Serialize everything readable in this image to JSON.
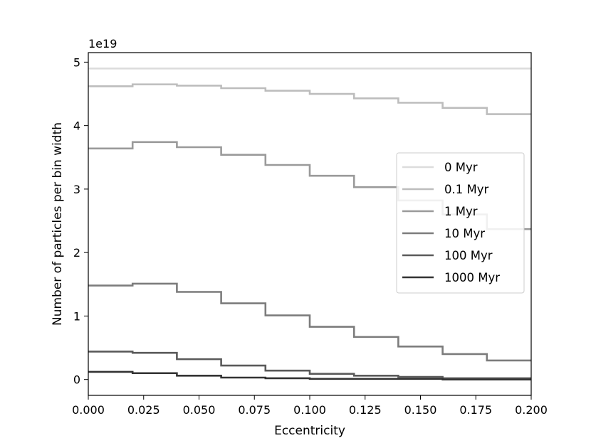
{
  "chart_data": {
    "type": "line",
    "xlabel": "Eccentricity",
    "ylabel": "Number of particles per bin width",
    "y_offset_label": "1e19",
    "xlim": [
      0.0,
      0.2
    ],
    "ylim": [
      -0.25,
      5.15
    ],
    "grid": false,
    "legend_position": "center-right",
    "x_ticks": [
      0.0,
      0.025,
      0.05,
      0.075,
      0.1,
      0.125,
      0.15,
      0.175,
      0.2
    ],
    "x_tick_labels": [
      "0.000",
      "0.025",
      "0.050",
      "0.075",
      "0.100",
      "0.125",
      "0.150",
      "0.175",
      "0.200"
    ],
    "y_ticks": [
      0,
      1,
      2,
      3,
      4,
      5
    ],
    "y_tick_labels": [
      "0",
      "1",
      "2",
      "3",
      "4",
      "5"
    ],
    "bin_edges": [
      0.0,
      0.02,
      0.04,
      0.06,
      0.08,
      0.1,
      0.12,
      0.14,
      0.16,
      0.18,
      0.2
    ],
    "series": [
      {
        "name": "0 Myr",
        "color": "#dcdcdc",
        "values": [
          4.9,
          4.9,
          4.9,
          4.9,
          4.9,
          4.9,
          4.9,
          4.9,
          4.9,
          4.9
        ]
      },
      {
        "name": "0.1 Myr",
        "color": "#bdbdbd",
        "values": [
          4.62,
          4.65,
          4.63,
          4.59,
          4.55,
          4.5,
          4.43,
          4.36,
          4.28,
          4.18
        ]
      },
      {
        "name": "1 Myr",
        "color": "#9a9a9a",
        "values": [
          3.64,
          3.74,
          3.66,
          3.54,
          3.38,
          3.21,
          3.03,
          2.82,
          2.6,
          2.37
        ]
      },
      {
        "name": "10 Myr",
        "color": "#7c7c7c",
        "values": [
          1.48,
          1.51,
          1.38,
          1.2,
          1.01,
          0.83,
          0.67,
          0.52,
          0.4,
          0.3
        ]
      },
      {
        "name": "100 Myr",
        "color": "#5a5a5a",
        "values": [
          0.44,
          0.42,
          0.32,
          0.22,
          0.14,
          0.09,
          0.06,
          0.04,
          0.02,
          0.02
        ]
      },
      {
        "name": "1000 Myr",
        "color": "#333333",
        "values": [
          0.12,
          0.1,
          0.06,
          0.03,
          0.02,
          0.01,
          0.01,
          0.01,
          0.0,
          0.0
        ]
      }
    ]
  }
}
